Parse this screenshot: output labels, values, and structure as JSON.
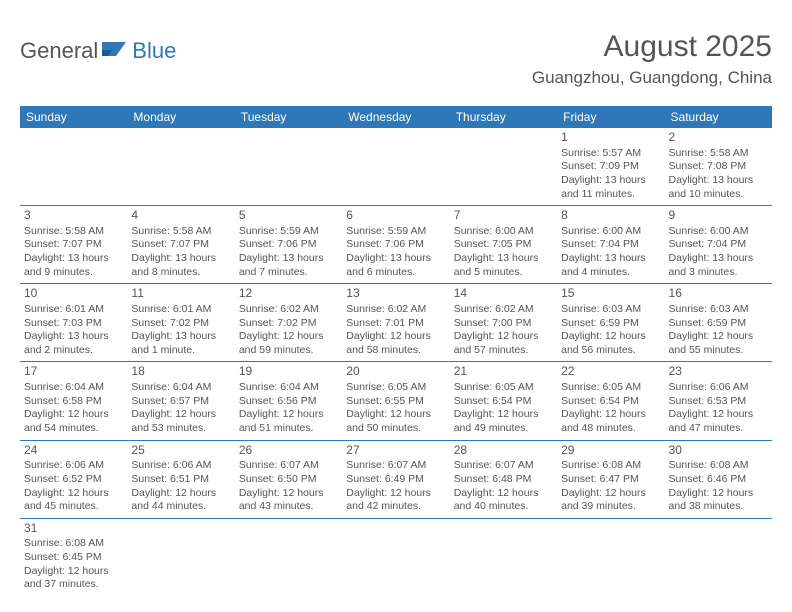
{
  "logo": {
    "part1": "General",
    "part2": "Blue"
  },
  "title": "August 2025",
  "location": "Guangzhou, Guangdong, China",
  "colors": {
    "header_bg": "#2f78b8",
    "header_text": "#ffffff",
    "border": "#2f78b8",
    "text": "#555555",
    "background": "#ffffff"
  },
  "dayHeaders": [
    "Sunday",
    "Monday",
    "Tuesday",
    "Wednesday",
    "Thursday",
    "Friday",
    "Saturday"
  ],
  "weeks": [
    [
      null,
      null,
      null,
      null,
      null,
      {
        "n": "1",
        "sr": "Sunrise: 5:57 AM",
        "ss": "Sunset: 7:09 PM",
        "dl": "Daylight: 13 hours and 11 minutes."
      },
      {
        "n": "2",
        "sr": "Sunrise: 5:58 AM",
        "ss": "Sunset: 7:08 PM",
        "dl": "Daylight: 13 hours and 10 minutes."
      }
    ],
    [
      {
        "n": "3",
        "sr": "Sunrise: 5:58 AM",
        "ss": "Sunset: 7:07 PM",
        "dl": "Daylight: 13 hours and 9 minutes."
      },
      {
        "n": "4",
        "sr": "Sunrise: 5:58 AM",
        "ss": "Sunset: 7:07 PM",
        "dl": "Daylight: 13 hours and 8 minutes."
      },
      {
        "n": "5",
        "sr": "Sunrise: 5:59 AM",
        "ss": "Sunset: 7:06 PM",
        "dl": "Daylight: 13 hours and 7 minutes."
      },
      {
        "n": "6",
        "sr": "Sunrise: 5:59 AM",
        "ss": "Sunset: 7:06 PM",
        "dl": "Daylight: 13 hours and 6 minutes."
      },
      {
        "n": "7",
        "sr": "Sunrise: 6:00 AM",
        "ss": "Sunset: 7:05 PM",
        "dl": "Daylight: 13 hours and 5 minutes."
      },
      {
        "n": "8",
        "sr": "Sunrise: 6:00 AM",
        "ss": "Sunset: 7:04 PM",
        "dl": "Daylight: 13 hours and 4 minutes."
      },
      {
        "n": "9",
        "sr": "Sunrise: 6:00 AM",
        "ss": "Sunset: 7:04 PM",
        "dl": "Daylight: 13 hours and 3 minutes."
      }
    ],
    [
      {
        "n": "10",
        "sr": "Sunrise: 6:01 AM",
        "ss": "Sunset: 7:03 PM",
        "dl": "Daylight: 13 hours and 2 minutes."
      },
      {
        "n": "11",
        "sr": "Sunrise: 6:01 AM",
        "ss": "Sunset: 7:02 PM",
        "dl": "Daylight: 13 hours and 1 minute."
      },
      {
        "n": "12",
        "sr": "Sunrise: 6:02 AM",
        "ss": "Sunset: 7:02 PM",
        "dl": "Daylight: 12 hours and 59 minutes."
      },
      {
        "n": "13",
        "sr": "Sunrise: 6:02 AM",
        "ss": "Sunset: 7:01 PM",
        "dl": "Daylight: 12 hours and 58 minutes."
      },
      {
        "n": "14",
        "sr": "Sunrise: 6:02 AM",
        "ss": "Sunset: 7:00 PM",
        "dl": "Daylight: 12 hours and 57 minutes."
      },
      {
        "n": "15",
        "sr": "Sunrise: 6:03 AM",
        "ss": "Sunset: 6:59 PM",
        "dl": "Daylight: 12 hours and 56 minutes."
      },
      {
        "n": "16",
        "sr": "Sunrise: 6:03 AM",
        "ss": "Sunset: 6:59 PM",
        "dl": "Daylight: 12 hours and 55 minutes."
      }
    ],
    [
      {
        "n": "17",
        "sr": "Sunrise: 6:04 AM",
        "ss": "Sunset: 6:58 PM",
        "dl": "Daylight: 12 hours and 54 minutes."
      },
      {
        "n": "18",
        "sr": "Sunrise: 6:04 AM",
        "ss": "Sunset: 6:57 PM",
        "dl": "Daylight: 12 hours and 53 minutes."
      },
      {
        "n": "19",
        "sr": "Sunrise: 6:04 AM",
        "ss": "Sunset: 6:56 PM",
        "dl": "Daylight: 12 hours and 51 minutes."
      },
      {
        "n": "20",
        "sr": "Sunrise: 6:05 AM",
        "ss": "Sunset: 6:55 PM",
        "dl": "Daylight: 12 hours and 50 minutes."
      },
      {
        "n": "21",
        "sr": "Sunrise: 6:05 AM",
        "ss": "Sunset: 6:54 PM",
        "dl": "Daylight: 12 hours and 49 minutes."
      },
      {
        "n": "22",
        "sr": "Sunrise: 6:05 AM",
        "ss": "Sunset: 6:54 PM",
        "dl": "Daylight: 12 hours and 48 minutes."
      },
      {
        "n": "23",
        "sr": "Sunrise: 6:06 AM",
        "ss": "Sunset: 6:53 PM",
        "dl": "Daylight: 12 hours and 47 minutes."
      }
    ],
    [
      {
        "n": "24",
        "sr": "Sunrise: 6:06 AM",
        "ss": "Sunset: 6:52 PM",
        "dl": "Daylight: 12 hours and 45 minutes."
      },
      {
        "n": "25",
        "sr": "Sunrise: 6:06 AM",
        "ss": "Sunset: 6:51 PM",
        "dl": "Daylight: 12 hours and 44 minutes."
      },
      {
        "n": "26",
        "sr": "Sunrise: 6:07 AM",
        "ss": "Sunset: 6:50 PM",
        "dl": "Daylight: 12 hours and 43 minutes."
      },
      {
        "n": "27",
        "sr": "Sunrise: 6:07 AM",
        "ss": "Sunset: 6:49 PM",
        "dl": "Daylight: 12 hours and 42 minutes."
      },
      {
        "n": "28",
        "sr": "Sunrise: 6:07 AM",
        "ss": "Sunset: 6:48 PM",
        "dl": "Daylight: 12 hours and 40 minutes."
      },
      {
        "n": "29",
        "sr": "Sunrise: 6:08 AM",
        "ss": "Sunset: 6:47 PM",
        "dl": "Daylight: 12 hours and 39 minutes."
      },
      {
        "n": "30",
        "sr": "Sunrise: 6:08 AM",
        "ss": "Sunset: 6:46 PM",
        "dl": "Daylight: 12 hours and 38 minutes."
      }
    ],
    [
      {
        "n": "31",
        "sr": "Sunrise: 6:08 AM",
        "ss": "Sunset: 6:45 PM",
        "dl": "Daylight: 12 hours and 37 minutes."
      },
      null,
      null,
      null,
      null,
      null,
      null
    ]
  ]
}
